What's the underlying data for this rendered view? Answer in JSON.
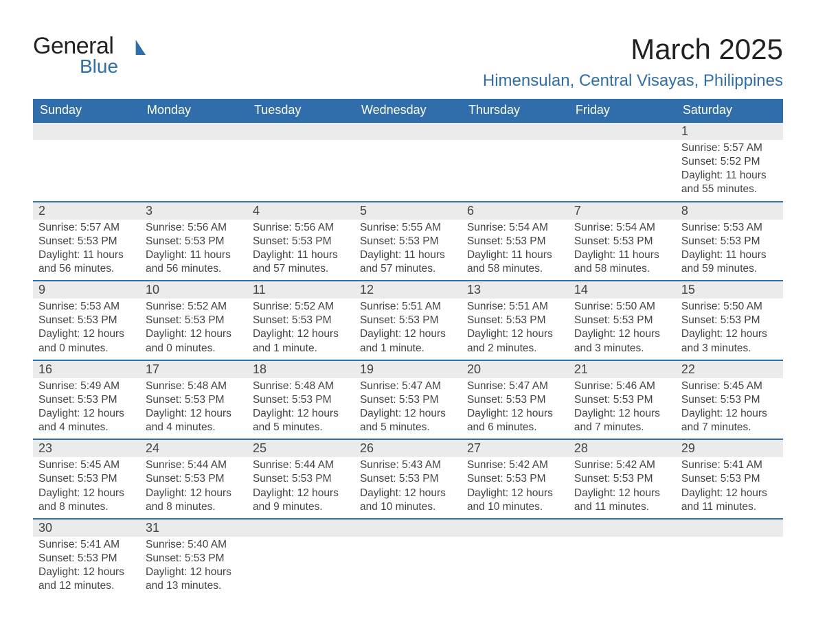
{
  "logo": {
    "main": "General",
    "sub": "Blue"
  },
  "title": "March 2025",
  "location": "Himensulan, Central Visayas, Philippines",
  "columns": [
    "Sunday",
    "Monday",
    "Tuesday",
    "Wednesday",
    "Thursday",
    "Friday",
    "Saturday"
  ],
  "colors": {
    "header_bg": "#2f6eaa",
    "header_text": "#ffffff",
    "daynum_bg": "#ebebeb",
    "row_divider": "#2f6eaa",
    "text": "#444444",
    "location_text": "#2f6eaa"
  },
  "weeks": [
    {
      "daynums": [
        "",
        "",
        "",
        "",
        "",
        "",
        "1"
      ],
      "cells": [
        [],
        [],
        [],
        [],
        [],
        [],
        [
          "Sunrise: 5:57 AM",
          "Sunset: 5:52 PM",
          "Daylight: 11 hours",
          "and 55 minutes."
        ]
      ]
    },
    {
      "daynums": [
        "2",
        "3",
        "4",
        "5",
        "6",
        "7",
        "8"
      ],
      "cells": [
        [
          "Sunrise: 5:57 AM",
          "Sunset: 5:53 PM",
          "Daylight: 11 hours",
          "and 56 minutes."
        ],
        [
          "Sunrise: 5:56 AM",
          "Sunset: 5:53 PM",
          "Daylight: 11 hours",
          "and 56 minutes."
        ],
        [
          "Sunrise: 5:56 AM",
          "Sunset: 5:53 PM",
          "Daylight: 11 hours",
          "and 57 minutes."
        ],
        [
          "Sunrise: 5:55 AM",
          "Sunset: 5:53 PM",
          "Daylight: 11 hours",
          "and 57 minutes."
        ],
        [
          "Sunrise: 5:54 AM",
          "Sunset: 5:53 PM",
          "Daylight: 11 hours",
          "and 58 minutes."
        ],
        [
          "Sunrise: 5:54 AM",
          "Sunset: 5:53 PM",
          "Daylight: 11 hours",
          "and 58 minutes."
        ],
        [
          "Sunrise: 5:53 AM",
          "Sunset: 5:53 PM",
          "Daylight: 11 hours",
          "and 59 minutes."
        ]
      ]
    },
    {
      "daynums": [
        "9",
        "10",
        "11",
        "12",
        "13",
        "14",
        "15"
      ],
      "cells": [
        [
          "Sunrise: 5:53 AM",
          "Sunset: 5:53 PM",
          "Daylight: 12 hours",
          "and 0 minutes."
        ],
        [
          "Sunrise: 5:52 AM",
          "Sunset: 5:53 PM",
          "Daylight: 12 hours",
          "and 0 minutes."
        ],
        [
          "Sunrise: 5:52 AM",
          "Sunset: 5:53 PM",
          "Daylight: 12 hours",
          "and 1 minute."
        ],
        [
          "Sunrise: 5:51 AM",
          "Sunset: 5:53 PM",
          "Daylight: 12 hours",
          "and 1 minute."
        ],
        [
          "Sunrise: 5:51 AM",
          "Sunset: 5:53 PM",
          "Daylight: 12 hours",
          "and 2 minutes."
        ],
        [
          "Sunrise: 5:50 AM",
          "Sunset: 5:53 PM",
          "Daylight: 12 hours",
          "and 3 minutes."
        ],
        [
          "Sunrise: 5:50 AM",
          "Sunset: 5:53 PM",
          "Daylight: 12 hours",
          "and 3 minutes."
        ]
      ]
    },
    {
      "daynums": [
        "16",
        "17",
        "18",
        "19",
        "20",
        "21",
        "22"
      ],
      "cells": [
        [
          "Sunrise: 5:49 AM",
          "Sunset: 5:53 PM",
          "Daylight: 12 hours",
          "and 4 minutes."
        ],
        [
          "Sunrise: 5:48 AM",
          "Sunset: 5:53 PM",
          "Daylight: 12 hours",
          "and 4 minutes."
        ],
        [
          "Sunrise: 5:48 AM",
          "Sunset: 5:53 PM",
          "Daylight: 12 hours",
          "and 5 minutes."
        ],
        [
          "Sunrise: 5:47 AM",
          "Sunset: 5:53 PM",
          "Daylight: 12 hours",
          "and 5 minutes."
        ],
        [
          "Sunrise: 5:47 AM",
          "Sunset: 5:53 PM",
          "Daylight: 12 hours",
          "and 6 minutes."
        ],
        [
          "Sunrise: 5:46 AM",
          "Sunset: 5:53 PM",
          "Daylight: 12 hours",
          "and 7 minutes."
        ],
        [
          "Sunrise: 5:45 AM",
          "Sunset: 5:53 PM",
          "Daylight: 12 hours",
          "and 7 minutes."
        ]
      ]
    },
    {
      "daynums": [
        "23",
        "24",
        "25",
        "26",
        "27",
        "28",
        "29"
      ],
      "cells": [
        [
          "Sunrise: 5:45 AM",
          "Sunset: 5:53 PM",
          "Daylight: 12 hours",
          "and 8 minutes."
        ],
        [
          "Sunrise: 5:44 AM",
          "Sunset: 5:53 PM",
          "Daylight: 12 hours",
          "and 8 minutes."
        ],
        [
          "Sunrise: 5:44 AM",
          "Sunset: 5:53 PM",
          "Daylight: 12 hours",
          "and 9 minutes."
        ],
        [
          "Sunrise: 5:43 AM",
          "Sunset: 5:53 PM",
          "Daylight: 12 hours",
          "and 10 minutes."
        ],
        [
          "Sunrise: 5:42 AM",
          "Sunset: 5:53 PM",
          "Daylight: 12 hours",
          "and 10 minutes."
        ],
        [
          "Sunrise: 5:42 AM",
          "Sunset: 5:53 PM",
          "Daylight: 12 hours",
          "and 11 minutes."
        ],
        [
          "Sunrise: 5:41 AM",
          "Sunset: 5:53 PM",
          "Daylight: 12 hours",
          "and 11 minutes."
        ]
      ]
    },
    {
      "daynums": [
        "30",
        "31",
        "",
        "",
        "",
        "",
        ""
      ],
      "cells": [
        [
          "Sunrise: 5:41 AM",
          "Sunset: 5:53 PM",
          "Daylight: 12 hours",
          "and 12 minutes."
        ],
        [
          "Sunrise: 5:40 AM",
          "Sunset: 5:53 PM",
          "Daylight: 12 hours",
          "and 13 minutes."
        ],
        [],
        [],
        [],
        [],
        []
      ]
    }
  ]
}
